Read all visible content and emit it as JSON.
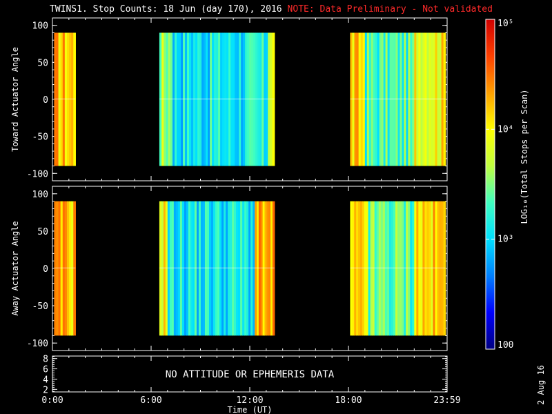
{
  "title": {
    "main": "TWINS1. Stop Counts: 18 Jun (day 170), 2016",
    "note": "NOTE: Data Preliminary - Not validated"
  },
  "footer_date": "2 Aug 16",
  "no_data_message": "NO ATTITUDE OR EPHEMERIS DATA",
  "colors": {
    "background": "#000000",
    "axes": "#ffffff",
    "note": "#ff2a2a",
    "colormap": [
      "#000080",
      "#0000ff",
      "#0080ff",
      "#00e0ff",
      "#40ffc0",
      "#c0ff40",
      "#ffff00",
      "#ffa000",
      "#ff4000",
      "#d00000"
    ]
  },
  "chart_data": [
    {
      "type": "heatmap",
      "panel": "toward",
      "ylabel": "Toward Actuator Angle",
      "xlim": [
        0,
        24
      ],
      "ylim": [
        -110,
        110
      ],
      "data_y_range": [
        -90,
        90
      ],
      "yticks": [
        -100,
        -50,
        0,
        50,
        100
      ],
      "xticks": [
        "0:00",
        "6:00",
        "12:00",
        "18:00",
        "23:59"
      ],
      "grid": false,
      "data_intervals_hours": [
        [
          0.1,
          1.4
        ],
        [
          6.5,
          13.5
        ],
        [
          18.1,
          23.9
        ]
      ],
      "log10_counts_profile": [
        {
          "start": 0.1,
          "end": 1.4,
          "level": 4.2
        },
        {
          "start": 6.5,
          "end": 7.3,
          "level": 3.6
        },
        {
          "start": 7.3,
          "end": 13.1,
          "level": 3.1
        },
        {
          "start": 13.1,
          "end": 13.5,
          "level": 3.9
        },
        {
          "start": 18.1,
          "end": 19.0,
          "level": 4.1
        },
        {
          "start": 19.0,
          "end": 22.0,
          "level": 3.3
        },
        {
          "start": 22.0,
          "end": 23.9,
          "level": 4.0
        }
      ]
    },
    {
      "type": "heatmap",
      "panel": "away",
      "ylabel": "Away Actuator Angle",
      "xlim": [
        0,
        24
      ],
      "ylim": [
        -110,
        110
      ],
      "data_y_range": [
        -90,
        90
      ],
      "yticks": [
        -100,
        -50,
        0,
        50,
        100
      ],
      "xticks": [
        "0:00",
        "6:00",
        "12:00",
        "18:00",
        "23:59"
      ],
      "grid": false,
      "data_intervals_hours": [
        [
          0.1,
          1.4
        ],
        [
          6.5,
          13.5
        ],
        [
          18.1,
          23.9
        ]
      ],
      "log10_counts_profile": [
        {
          "start": 0.1,
          "end": 1.4,
          "level": 4.2
        },
        {
          "start": 6.5,
          "end": 7.0,
          "level": 4.0
        },
        {
          "start": 7.0,
          "end": 12.3,
          "level": 3.1
        },
        {
          "start": 12.3,
          "end": 13.5,
          "level": 4.2
        },
        {
          "start": 18.1,
          "end": 19.2,
          "level": 4.0
        },
        {
          "start": 19.2,
          "end": 22.0,
          "level": 3.4
        },
        {
          "start": 22.0,
          "end": 23.9,
          "level": 4.1
        }
      ]
    },
    {
      "type": "line",
      "panel": "orbit",
      "xlim": [
        0,
        24
      ],
      "ylim": [
        1.5,
        8.5
      ],
      "yticks": [
        2,
        4,
        6,
        8
      ],
      "xticks": [
        "0:00",
        "6:00",
        "12:00",
        "18:00",
        "23:59"
      ],
      "xlabel": "Time (UT)",
      "series": []
    },
    {
      "type": "heatmap",
      "panel": "colorbar",
      "scale": "log",
      "range": [
        100,
        100000
      ],
      "ticks": [
        "100",
        "10³",
        "10⁴",
        "10⁵"
      ],
      "label": "LOG₁₀(Total Stops per Scan)"
    }
  ]
}
